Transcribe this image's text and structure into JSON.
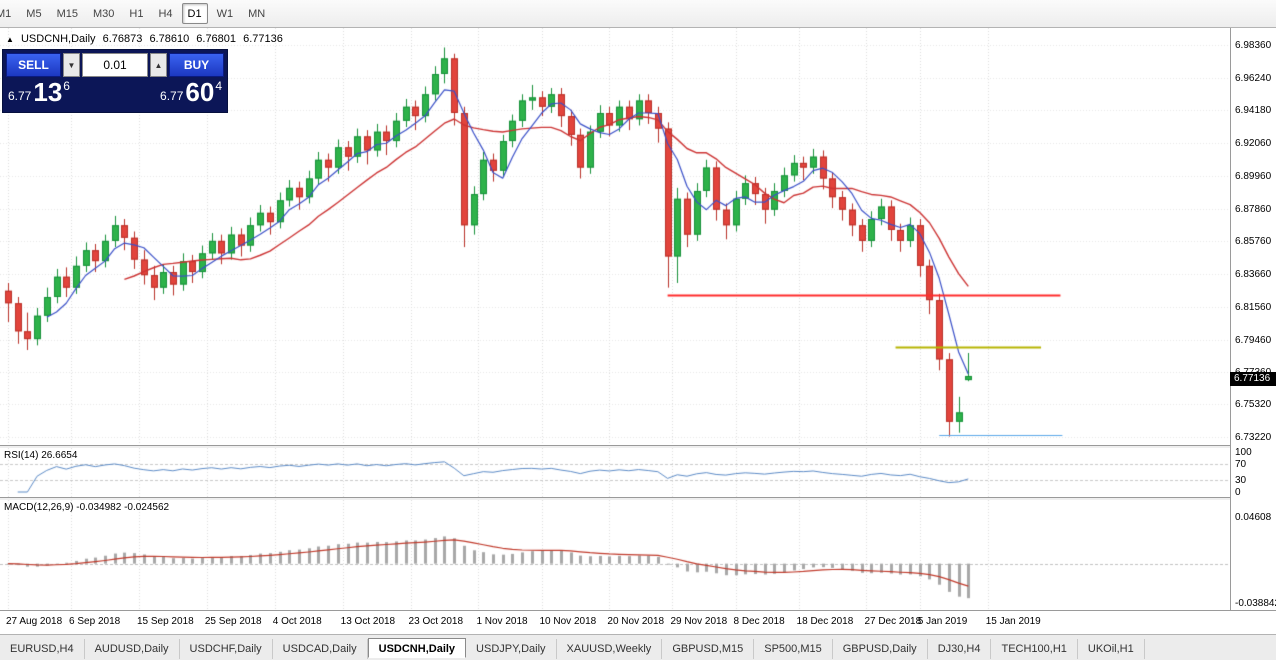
{
  "toolbar": {
    "timeframes": [
      "M1",
      "M5",
      "M15",
      "M30",
      "H1",
      "H4",
      "D1",
      "W1",
      "MN"
    ],
    "active_timeframe": "D1"
  },
  "symbol_line": {
    "icon": "▲",
    "symbol": "USDCNH,Daily",
    "open": "6.76873",
    "high": "6.78610",
    "low": "6.76801",
    "close": "6.77136"
  },
  "trade_panel": {
    "sell_label": "SELL",
    "buy_label": "BUY",
    "lot": "0.01",
    "down_icon": "▼",
    "up_icon": "▲",
    "bid": {
      "prefix": "6.77",
      "big": "13",
      "sup": "6"
    },
    "ask": {
      "prefix": "6.77",
      "big": "60",
      "sup": "4"
    }
  },
  "price_axis_labels": [
    "6.98360",
    "6.96240",
    "6.94180",
    "6.92060",
    "6.89960",
    "6.87860",
    "6.85760",
    "6.83660",
    "6.81560",
    "6.79460",
    "6.77360",
    "6.75320",
    "6.73220"
  ],
  "price_badge": "6.77136",
  "rsi": {
    "label": "RSI(14) 26.6654",
    "period": 14,
    "levels": [
      100,
      70,
      30,
      0
    ],
    "level_labels": [
      "100",
      "70",
      "30",
      "0"
    ]
  },
  "macd": {
    "label": "MACD(12,26,9) -0.034982 -0.024562",
    "axis_top": "0.04608",
    "axis_bottom": "-0.038842"
  },
  "dates": [
    {
      "label": "27 Aug 2018",
      "i": 0
    },
    {
      "label": "6 Sep 2018",
      "i": 6.5
    },
    {
      "label": "15 Sep 2018",
      "i": 13.5
    },
    {
      "label": "25 Sep 2018",
      "i": 20.5
    },
    {
      "label": "4 Oct 2018",
      "i": 27.5
    },
    {
      "label": "13 Oct 2018",
      "i": 34.5
    },
    {
      "label": "23 Oct 2018",
      "i": 41.5
    },
    {
      "label": "1 Nov 2018",
      "i": 48.5
    },
    {
      "label": "10 Nov 2018",
      "i": 55
    },
    {
      "label": "20 Nov 2018",
      "i": 62
    },
    {
      "label": "29 Nov 2018",
      "i": 68.5
    },
    {
      "label": "8 Dec 2018",
      "i": 75
    },
    {
      "label": "18 Dec 2018",
      "i": 81.5
    },
    {
      "label": "27 Dec 2018",
      "i": 88.5
    },
    {
      "label": "5 Jan 2019",
      "i": 94
    },
    {
      "label": "15 Jan 2019",
      "i": 101
    }
  ],
  "tabs": [
    {
      "label": "EURUSD,H4",
      "active": false
    },
    {
      "label": "AUDUSD,Daily",
      "active": false
    },
    {
      "label": "USDCHF,Daily",
      "active": false
    },
    {
      "label": "USDCAD,Daily",
      "active": false
    },
    {
      "label": "USDCNH,Daily",
      "active": true
    },
    {
      "label": "USDJPY,Daily",
      "active": false
    },
    {
      "label": "XAUUSD,Weekly",
      "active": false
    },
    {
      "label": "GBPUSD,M15",
      "active": false
    },
    {
      "label": "SP500,M15",
      "active": false
    },
    {
      "label": "GBPUSD,Daily",
      "active": false
    },
    {
      "label": "DJ30,H4",
      "active": false
    },
    {
      "label": "TECH100,H1",
      "active": false
    },
    {
      "label": "UKOil,H1",
      "active": false
    }
  ],
  "chart_data": {
    "type": "candlestick",
    "symbol": "USDCNH",
    "timeframe": "Daily",
    "current_price": 6.77136,
    "visible_range": {
      "top": 6.9945,
      "bottom": 6.7271
    },
    "ma_fast_period": 5,
    "ma_slow_period": 13,
    "hlines": [
      {
        "price": 6.823,
        "from": 68,
        "to": 108.5,
        "color": "#ff2a2a",
        "width": 2
      },
      {
        "price": 6.79,
        "from": 91.5,
        "to": 106.5,
        "color": "#b6b400",
        "width": 2
      },
      {
        "price": 6.7338,
        "from": 96,
        "to": 108.7,
        "color": "#5aa7e8",
        "width": 1
      }
    ],
    "colors": {
      "up": "#2eb24a",
      "up_border": "#17913a",
      "down": "#e2443c",
      "down_border": "#b93028",
      "ma_fast": "#3a50c8",
      "ma_slow": "#cc3333",
      "rsi_line": "#5b8ac6",
      "rsi_level": "#c8c8c8",
      "macd_hist": "#a8a8a8",
      "macd_signal": "#c03a2b",
      "hgrid": "#e6e6e6",
      "vgrid": "#dcdcdc"
    },
    "candles": [
      [
        6.826,
        6.831,
        6.806,
        6.818
      ],
      [
        6.818,
        6.822,
        6.792,
        6.8
      ],
      [
        6.8,
        6.812,
        6.788,
        6.795
      ],
      [
        6.795,
        6.815,
        6.791,
        6.81
      ],
      [
        6.81,
        6.828,
        6.806,
        6.822
      ],
      [
        6.822,
        6.84,
        6.818,
        6.835
      ],
      [
        6.835,
        6.841,
        6.822,
        6.828
      ],
      [
        6.828,
        6.848,
        6.824,
        6.842
      ],
      [
        6.842,
        6.857,
        6.838,
        6.852
      ],
      [
        6.852,
        6.856,
        6.838,
        6.845
      ],
      [
        6.845,
        6.862,
        6.841,
        6.858
      ],
      [
        6.858,
        6.874,
        6.854,
        6.868
      ],
      [
        6.868,
        6.872,
        6.852,
        6.86
      ],
      [
        6.86,
        6.864,
        6.84,
        6.846
      ],
      [
        6.846,
        6.852,
        6.83,
        6.836
      ],
      [
        6.836,
        6.842,
        6.82,
        6.828
      ],
      [
        6.828,
        6.843,
        6.824,
        6.838
      ],
      [
        6.838,
        6.842,
        6.823,
        6.83
      ],
      [
        6.83,
        6.85,
        6.826,
        6.845
      ],
      [
        6.845,
        6.849,
        6.831,
        6.838
      ],
      [
        6.838,
        6.855,
        6.834,
        6.85
      ],
      [
        6.85,
        6.863,
        6.846,
        6.858
      ],
      [
        6.858,
        6.862,
        6.843,
        6.85
      ],
      [
        6.85,
        6.867,
        6.846,
        6.862
      ],
      [
        6.862,
        6.866,
        6.848,
        6.855
      ],
      [
        6.855,
        6.873,
        6.851,
        6.868
      ],
      [
        6.868,
        6.881,
        6.864,
        6.876
      ],
      [
        6.876,
        6.88,
        6.862,
        6.87
      ],
      [
        6.87,
        6.889,
        6.866,
        6.884
      ],
      [
        6.884,
        6.897,
        6.88,
        6.892
      ],
      [
        6.892,
        6.896,
        6.878,
        6.886
      ],
      [
        6.886,
        6.903,
        6.882,
        6.898
      ],
      [
        6.898,
        6.915,
        6.894,
        6.91
      ],
      [
        6.91,
        6.914,
        6.896,
        6.905
      ],
      [
        6.905,
        6.923,
        6.901,
        6.918
      ],
      [
        6.918,
        6.922,
        6.903,
        6.912
      ],
      [
        6.912,
        6.93,
        6.908,
        6.925
      ],
      [
        6.925,
        6.929,
        6.907,
        6.916
      ],
      [
        6.916,
        6.933,
        6.912,
        6.928
      ],
      [
        6.928,
        6.932,
        6.913,
        6.922
      ],
      [
        6.922,
        6.94,
        6.918,
        6.935
      ],
      [
        6.935,
        6.949,
        6.931,
        6.944
      ],
      [
        6.944,
        6.948,
        6.929,
        6.938
      ],
      [
        6.938,
        6.957,
        6.934,
        6.952
      ],
      [
        6.952,
        6.97,
        6.948,
        6.965
      ],
      [
        6.965,
        6.982,
        6.959,
        6.975
      ],
      [
        6.975,
        6.978,
        6.932,
        6.94
      ],
      [
        6.94,
        6.944,
        6.854,
        6.868
      ],
      [
        6.868,
        6.893,
        6.862,
        6.888
      ],
      [
        6.888,
        6.915,
        6.884,
        6.91
      ],
      [
        6.91,
        6.914,
        6.896,
        6.903
      ],
      [
        6.903,
        6.926,
        6.899,
        6.922
      ],
      [
        6.922,
        6.939,
        6.918,
        6.935
      ],
      [
        6.935,
        6.952,
        6.931,
        6.948
      ],
      [
        6.948,
        6.958,
        6.942,
        6.95
      ],
      [
        6.95,
        6.954,
        6.938,
        6.944
      ],
      [
        6.944,
        6.956,
        6.94,
        6.952
      ],
      [
        6.952,
        6.956,
        6.931,
        6.938
      ],
      [
        6.938,
        6.942,
        6.919,
        6.926
      ],
      [
        6.926,
        6.93,
        6.898,
        6.905
      ],
      [
        6.905,
        6.932,
        6.901,
        6.928
      ],
      [
        6.928,
        6.945,
        6.924,
        6.94
      ],
      [
        6.94,
        6.944,
        6.925,
        6.932
      ],
      [
        6.932,
        6.948,
        6.928,
        6.944
      ],
      [
        6.944,
        6.948,
        6.929,
        6.936
      ],
      [
        6.936,
        6.952,
        6.932,
        6.948
      ],
      [
        6.948,
        6.952,
        6.933,
        6.94
      ],
      [
        6.94,
        6.944,
        6.921,
        6.93
      ],
      [
        6.93,
        6.934,
        6.828,
        6.848
      ],
      [
        6.848,
        6.892,
        6.831,
        6.885
      ],
      [
        6.885,
        6.889,
        6.854,
        6.862
      ],
      [
        6.862,
        6.895,
        6.858,
        6.89
      ],
      [
        6.89,
        6.91,
        6.886,
        6.905
      ],
      [
        6.905,
        6.909,
        6.871,
        6.878
      ],
      [
        6.878,
        6.882,
        6.859,
        6.868
      ],
      [
        6.868,
        6.89,
        6.864,
        6.885
      ],
      [
        6.885,
        6.9,
        6.881,
        6.895
      ],
      [
        6.895,
        6.899,
        6.881,
        6.888
      ],
      [
        6.888,
        6.892,
        6.869,
        6.878
      ],
      [
        6.878,
        6.895,
        6.874,
        6.89
      ],
      [
        6.89,
        6.905,
        6.886,
        6.9
      ],
      [
        6.9,
        6.913,
        6.896,
        6.908
      ],
      [
        6.908,
        6.912,
        6.897,
        6.905
      ],
      [
        6.905,
        6.917,
        6.901,
        6.912
      ],
      [
        6.912,
        6.916,
        6.891,
        6.898
      ],
      [
        6.898,
        6.902,
        6.879,
        6.886
      ],
      [
        6.886,
        6.89,
        6.871,
        6.878
      ],
      [
        6.878,
        6.882,
        6.861,
        6.868
      ],
      [
        6.868,
        6.872,
        6.851,
        6.858
      ],
      [
        6.858,
        6.877,
        6.854,
        6.872
      ],
      [
        6.872,
        6.885,
        6.868,
        6.88
      ],
      [
        6.88,
        6.884,
        6.858,
        6.865
      ],
      [
        6.865,
        6.869,
        6.851,
        6.858
      ],
      [
        6.858,
        6.873,
        6.854,
        6.868
      ],
      [
        6.868,
        6.872,
        6.835,
        6.842
      ],
      [
        6.842,
        6.846,
        6.811,
        6.82
      ],
      [
        6.82,
        6.824,
        6.775,
        6.782
      ],
      [
        6.782,
        6.786,
        6.7325,
        6.742
      ],
      [
        6.742,
        6.758,
        6.735,
        6.748
      ],
      [
        6.76873,
        6.7861,
        6.76801,
        6.77136
      ]
    ]
  }
}
